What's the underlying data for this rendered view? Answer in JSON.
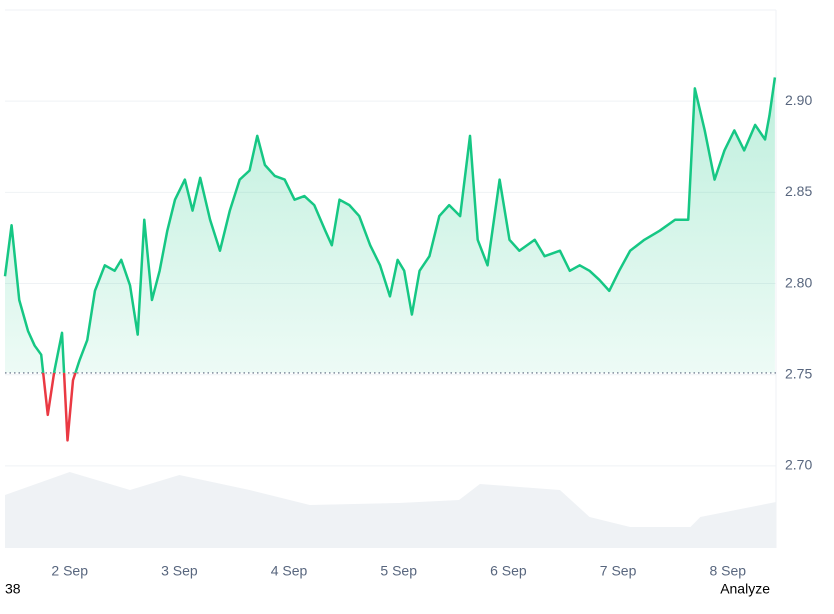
{
  "chart_data": {
    "type": "line",
    "x": [
      1.41,
      1.47,
      1.54,
      1.62,
      1.68,
      1.74,
      1.8,
      1.86,
      1.93,
      1.98,
      2.03,
      2.09,
      2.16,
      2.23,
      2.32,
      2.41,
      2.47,
      2.55,
      2.62,
      2.68,
      2.75,
      2.82,
      2.89,
      2.96,
      3.05,
      3.12,
      3.19,
      3.28,
      3.37,
      3.46,
      3.55,
      3.64,
      3.71,
      3.78,
      3.87,
      3.96,
      4.05,
      4.14,
      4.23,
      4.33,
      4.39,
      4.46,
      4.55,
      4.64,
      4.74,
      4.83,
      4.92,
      4.99,
      5.05,
      5.12,
      5.19,
      5.28,
      5.37,
      5.46,
      5.56,
      5.65,
      5.72,
      5.81,
      5.92,
      6.01,
      6.1,
      6.24,
      6.33,
      6.47,
      6.56,
      6.65,
      6.74,
      6.83,
      6.92,
      7.01,
      7.11,
      7.24,
      7.38,
      7.52,
      7.64,
      7.7,
      7.79,
      7.88,
      7.97,
      8.06,
      8.15,
      8.25,
      8.34,
      8.38,
      8.43
    ],
    "series": [
      {
        "color": "#16c784",
        "below_color": "#ea3943",
        "values": [
          2.804,
          2.832,
          2.791,
          2.774,
          2.766,
          2.761,
          2.728,
          2.752,
          2.773,
          2.714,
          2.747,
          2.758,
          2.769,
          2.796,
          2.81,
          2.807,
          2.813,
          2.799,
          2.772,
          2.835,
          2.791,
          2.807,
          2.829,
          2.846,
          2.857,
          2.84,
          2.858,
          2.835,
          2.818,
          2.84,
          2.857,
          2.862,
          2.881,
          2.865,
          2.859,
          2.857,
          2.846,
          2.848,
          2.843,
          2.829,
          2.821,
          2.846,
          2.843,
          2.837,
          2.821,
          2.81,
          2.793,
          2.813,
          2.807,
          2.783,
          2.807,
          2.815,
          2.837,
          2.843,
          2.837,
          2.881,
          2.824,
          2.81,
          2.857,
          2.824,
          2.818,
          2.824,
          2.815,
          2.818,
          2.807,
          2.81,
          2.807,
          2.802,
          2.796,
          2.807,
          2.818,
          2.824,
          2.829,
          2.835,
          2.835,
          2.907,
          2.884,
          2.857,
          2.873,
          2.884,
          2.873,
          2.887,
          2.879,
          2.892,
          2.913
        ]
      }
    ],
    "baseline": 2.751,
    "volume": {
      "color": "#eff2f5",
      "x": [
        1.41,
        2.0,
        2.55,
        3.0,
        3.64,
        4.19,
        5.0,
        5.55,
        5.74,
        6.47,
        6.74,
        7.11,
        7.66,
        7.75,
        8.44
      ],
      "values": [
        53,
        76,
        58,
        73,
        58,
        43,
        45,
        48,
        64,
        58,
        31,
        21,
        21,
        31,
        46
      ]
    },
    "xlim": [
      1.41,
      8.44
    ],
    "xticks": [
      {
        "value": 2,
        "label": "2 Sep"
      },
      {
        "value": 3,
        "label": "3 Sep"
      },
      {
        "value": 4,
        "label": "4 Sep"
      },
      {
        "value": 5,
        "label": "5 Sep"
      },
      {
        "value": 6,
        "label": "6 Sep"
      },
      {
        "value": 7,
        "label": "7 Sep"
      },
      {
        "value": 8,
        "label": "8 Sep"
      }
    ],
    "ylim": [
      2.655,
      2.95
    ],
    "yticks": [
      {
        "value": 2.7,
        "label": "2.70"
      },
      {
        "value": 2.75,
        "label": "2.75"
      },
      {
        "value": 2.8,
        "label": "2.80"
      },
      {
        "value": 2.85,
        "label": "2.85"
      },
      {
        "value": 2.9,
        "label": "2.90"
      }
    ],
    "grid": true
  },
  "footer": {
    "left": "38",
    "right": "Analyze"
  }
}
